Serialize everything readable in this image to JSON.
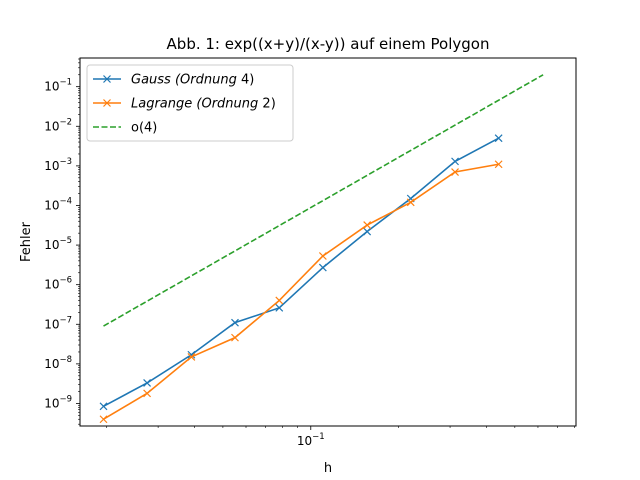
{
  "chart_data": {
    "type": "line",
    "title": "Abb. 1: exp((x+y)/(x-y)) auf einem Polygon",
    "xlabel": "h",
    "ylabel": "Fehler",
    "xscale": "log",
    "yscale": "log",
    "xlim": [
      0.0162,
      0.81
    ],
    "ylim": [
      2.7e-10,
      0.53
    ],
    "x_ticks": [
      {
        "value": 0.1,
        "label": "10",
        "exp": "−1"
      }
    ],
    "y_ticks": [
      {
        "value": 1e-09,
        "label": "10",
        "exp": "−9"
      },
      {
        "value": 1e-08,
        "label": "10",
        "exp": "−8"
      },
      {
        "value": 1e-07,
        "label": "10",
        "exp": "−7"
      },
      {
        "value": 1e-06,
        "label": "10",
        "exp": "−6"
      },
      {
        "value": 1e-05,
        "label": "10",
        "exp": "−5"
      },
      {
        "value": 0.0001,
        "label": "10",
        "exp": "−4"
      },
      {
        "value": 0.001,
        "label": "10",
        "exp": "−3"
      },
      {
        "value": 0.01,
        "label": "10",
        "exp": "−2"
      },
      {
        "value": 0.1,
        "label": "10",
        "exp": "−1"
      }
    ],
    "legend_position": "top-left",
    "series": [
      {
        "name_italic": "Gauss",
        "name_extra": "(Ordnung",
        "name_num": "4)",
        "color": "#1f77b4",
        "style": "solid",
        "marker": "x",
        "x": [
          0.0195,
          0.0275,
          0.039,
          0.055,
          0.078,
          0.11,
          0.156,
          0.22,
          0.312,
          0.44,
          0.625
        ],
        "y": [
          8.5e-10,
          3.3e-09,
          1.7e-08,
          1.1e-07,
          2.6e-07,
          2.7e-06,
          2.2e-05,
          0.00015,
          0.0013,
          0.005,
          null
        ]
      },
      {
        "name_italic": "Lagrange",
        "name_extra": "(Ordnung",
        "name_num": "2)",
        "color": "#ff7f0e",
        "style": "solid",
        "marker": "x",
        "x": [
          0.0195,
          0.0275,
          0.039,
          0.055,
          0.078,
          0.11,
          0.156,
          0.22,
          0.312,
          0.44,
          0.625
        ],
        "y": [
          4e-10,
          1.8e-09,
          1.5e-08,
          4.6e-08,
          4e-07,
          5.3e-06,
          3.2e-05,
          0.00012,
          0.0007,
          0.0011,
          null
        ]
      },
      {
        "name": "o(4)",
        "color": "#2ca02c",
        "style": "dashed",
        "marker": "none",
        "x": [
          0.0195,
          0.625
        ],
        "y": [
          9e-08,
          0.2
        ]
      }
    ]
  }
}
